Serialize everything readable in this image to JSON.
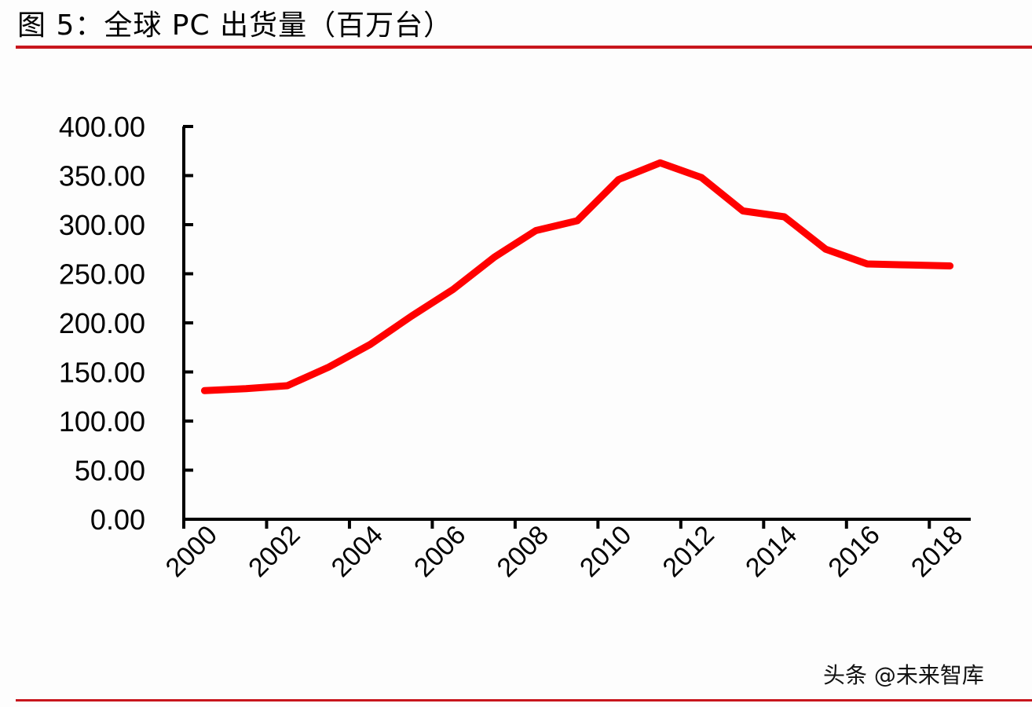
{
  "header": {
    "title": "图 5：全球 PC 出货量（百万台）"
  },
  "footer": {
    "watermark": "头条 @未来智库"
  },
  "colors": {
    "accent_rule": "#c8161d",
    "series_line": "#ff0000",
    "axis": "#000000"
  },
  "chart_data": {
    "type": "line",
    "title": "全球 PC 出货量（百万台）",
    "xlabel": "",
    "ylabel": "",
    "ylim": [
      0,
      400
    ],
    "yticks": [
      "0.00",
      "50.00",
      "100.00",
      "150.00",
      "200.00",
      "250.00",
      "300.00",
      "350.00",
      "400.00"
    ],
    "xtick_labels": [
      "2000",
      "2002",
      "2004",
      "2006",
      "2008",
      "2010",
      "2012",
      "2014",
      "2016",
      "2018"
    ],
    "grid": false,
    "legend": null,
    "x": [
      2000,
      2001,
      2002,
      2003,
      2004,
      2005,
      2006,
      2007,
      2008,
      2009,
      2010,
      2011,
      2012,
      2013,
      2014,
      2015,
      2016,
      2017,
      2018
    ],
    "series": [
      {
        "name": "全球 PC 出货量",
        "values": [
          131,
          133,
          136,
          155,
          178,
          207,
          234,
          267,
          294,
          304,
          346,
          363,
          348,
          314,
          308,
          275,
          260,
          259,
          258
        ]
      }
    ]
  }
}
